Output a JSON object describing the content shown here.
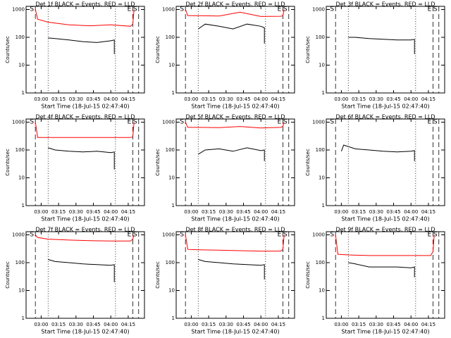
{
  "chart_data": [
    {
      "type": "line",
      "title": "Det 1f BLACK = Events, RED = LLD",
      "x_label": "Start Time (18-Jul-15 02:47:40)",
      "y_label": "Counts/sec",
      "log_y": true,
      "xlim": [
        "02:47",
        "04:29"
      ],
      "xticks": [
        "03:00",
        "03:15",
        "03:30",
        "03:45",
        "04:00",
        "04:15"
      ],
      "ylim": [
        1,
        1300
      ],
      "yticks": [
        1,
        10,
        100,
        1000
      ],
      "vlines": [
        {
          "x": "02:55",
          "style": "dashed",
          "label": "S"
        },
        {
          "x": "03:06",
          "style": "dotted"
        },
        {
          "x": "04:04",
          "style": "dotted"
        },
        {
          "x": "04:19",
          "style": "dashed",
          "label": "E"
        },
        {
          "x": "04:24",
          "style": "dashed",
          "label": "S"
        }
      ],
      "series": [
        {
          "name": "LLD",
          "color": "#ff0000",
          "x": [
            "02:55",
            "02:57",
            "03:06",
            "03:24",
            "03:42",
            "04:00",
            "04:17",
            "04:19",
            "04:20"
          ],
          "values": [
            1000,
            450,
            350,
            280,
            260,
            280,
            250,
            300,
            1000
          ]
        },
        {
          "name": "Events",
          "color": "#000000",
          "x": [
            "03:06",
            "03:12",
            "03:24",
            "03:36",
            "03:48",
            "04:00",
            "04:03",
            "04:03"
          ],
          "values": [
            95,
            90,
            80,
            70,
            65,
            75,
            80,
            25
          ]
        }
      ]
    },
    {
      "type": "line",
      "title": "Det 2f BLACK = Events, RED = LLD",
      "x_label": "Start Time (18-Jul-15 02:47:40)",
      "y_label": "Counts/sec",
      "log_y": true,
      "xlim": [
        "02:47",
        "04:29"
      ],
      "xticks": [
        "03:00",
        "03:15",
        "03:30",
        "03:45",
        "04:00",
        "04:15"
      ],
      "ylim": [
        1,
        1300
      ],
      "yticks": [
        1,
        10,
        100,
        1000
      ],
      "vlines": [
        {
          "x": "02:55",
          "style": "dashed",
          "label": "S"
        },
        {
          "x": "03:06",
          "style": "dotted"
        },
        {
          "x": "04:04",
          "style": "dotted"
        },
        {
          "x": "04:19",
          "style": "dashed",
          "label": "E"
        },
        {
          "x": "04:24",
          "style": "dashed",
          "label": "S"
        }
      ],
      "series": [
        {
          "name": "LLD",
          "color": "#ff0000",
          "x": [
            "02:55",
            "02:57",
            "03:06",
            "03:24",
            "03:42",
            "04:00",
            "04:17",
            "04:19",
            "04:20"
          ],
          "values": [
            1000,
            600,
            600,
            580,
            800,
            560,
            570,
            600,
            1000
          ]
        },
        {
          "name": "Events",
          "color": "#000000",
          "x": [
            "03:06",
            "03:12",
            "03:24",
            "03:36",
            "03:48",
            "04:00",
            "04:03",
            "04:03"
          ],
          "values": [
            200,
            300,
            250,
            200,
            300,
            250,
            220,
            60
          ]
        }
      ]
    },
    {
      "type": "line",
      "title": "Det 3f BLACK = Events, RED = LLD",
      "x_label": "Start Time (18-Jul-15 02:47:40)",
      "y_label": "Counts/sec",
      "log_y": true,
      "xlim": [
        "02:47",
        "04:29"
      ],
      "xticks": [
        "03:00",
        "03:15",
        "03:30",
        "03:45",
        "04:00",
        "04:15"
      ],
      "ylim": [
        1,
        1300
      ],
      "yticks": [
        1,
        10,
        100,
        1000
      ],
      "vlines": [
        {
          "x": "02:55",
          "style": "dashed",
          "label": "S"
        },
        {
          "x": "03:06",
          "style": "dotted"
        },
        {
          "x": "04:04",
          "style": "dotted"
        },
        {
          "x": "04:19",
          "style": "dashed",
          "label": "E"
        },
        {
          "x": "04:24",
          "style": "dashed",
          "label": "S"
        }
      ],
      "series": [
        {
          "name": "Events",
          "color": "#000000",
          "x": [
            "03:06",
            "03:12",
            "03:24",
            "03:36",
            "03:48",
            "04:00",
            "04:03",
            "04:03"
          ],
          "values": [
            100,
            100,
            90,
            85,
            80,
            80,
            85,
            25
          ]
        }
      ]
    },
    {
      "type": "line",
      "title": "Det 4f BLACK = Events, RED = LLD",
      "x_label": "Start Time (18-Jul-15 02:47:40)",
      "y_label": "Counts/sec",
      "log_y": true,
      "xlim": [
        "02:47",
        "04:29"
      ],
      "xticks": [
        "03:00",
        "03:15",
        "03:30",
        "03:45",
        "04:00",
        "04:15"
      ],
      "ylim": [
        1,
        1300
      ],
      "yticks": [
        1,
        10,
        100,
        1000
      ],
      "vlines": [
        {
          "x": "02:55",
          "style": "dashed",
          "label": "S"
        },
        {
          "x": "03:06",
          "style": "dotted"
        },
        {
          "x": "04:04",
          "style": "dotted"
        },
        {
          "x": "04:19",
          "style": "dashed",
          "label": "E"
        },
        {
          "x": "04:24",
          "style": "dashed",
          "label": "S"
        }
      ],
      "series": [
        {
          "name": "LLD",
          "color": "#ff0000",
          "x": [
            "02:55",
            "02:57",
            "03:06",
            "03:24",
            "03:42",
            "04:00",
            "04:17",
            "04:19",
            "04:20"
          ],
          "values": [
            1000,
            280,
            280,
            280,
            280,
            280,
            280,
            300,
            1000
          ]
        },
        {
          "name": "Events",
          "color": "#000000",
          "x": [
            "03:06",
            "03:12",
            "03:24",
            "03:36",
            "03:48",
            "04:00",
            "04:03",
            "04:03"
          ],
          "values": [
            120,
            100,
            90,
            85,
            90,
            80,
            85,
            20
          ]
        }
      ]
    },
    {
      "type": "line",
      "title": "Det 5f BLACK = Events, RED = LLD",
      "x_label": "Start Time (18-Jul-15 02:47:40)",
      "y_label": "Counts/sec",
      "log_y": true,
      "xlim": [
        "02:47",
        "04:29"
      ],
      "xticks": [
        "03:00",
        "03:15",
        "03:30",
        "03:45",
        "04:00",
        "04:15"
      ],
      "ylim": [
        1,
        1300
      ],
      "yticks": [
        1,
        10,
        100,
        1000
      ],
      "vlines": [
        {
          "x": "02:55",
          "style": "dashed",
          "label": "S"
        },
        {
          "x": "03:06",
          "style": "dotted"
        },
        {
          "x": "04:04",
          "style": "dotted"
        },
        {
          "x": "04:19",
          "style": "dashed",
          "label": "E"
        },
        {
          "x": "04:24",
          "style": "dashed",
          "label": "S"
        }
      ],
      "series": [
        {
          "name": "LLD",
          "color": "#ff0000",
          "x": [
            "02:55",
            "02:57",
            "03:06",
            "03:24",
            "03:42",
            "04:00",
            "04:17",
            "04:19",
            "04:20"
          ],
          "values": [
            1000,
            650,
            650,
            640,
            700,
            620,
            650,
            700,
            1000
          ]
        },
        {
          "name": "Events",
          "color": "#000000",
          "x": [
            "03:06",
            "03:12",
            "03:24",
            "03:36",
            "03:48",
            "04:00",
            "04:03",
            "04:03"
          ],
          "values": [
            70,
            100,
            110,
            90,
            120,
            95,
            100,
            40
          ]
        }
      ]
    },
    {
      "type": "line",
      "title": "Det 6f BLACK = Events, RED = LLD",
      "x_label": "Start Time (18-Jul-15 02:47:40)",
      "y_label": "Counts/sec",
      "log_y": true,
      "xlim": [
        "02:47",
        "04:29"
      ],
      "xticks": [
        "03:00",
        "03:15",
        "03:30",
        "03:45",
        "04:00",
        "04:15"
      ],
      "ylim": [
        1,
        1300
      ],
      "yticks": [
        1,
        10,
        100,
        1000
      ],
      "vlines": [
        {
          "x": "02:55",
          "style": "dashed",
          "label": "S"
        },
        {
          "x": "03:06",
          "style": "dotted"
        },
        {
          "x": "04:04",
          "style": "dotted"
        },
        {
          "x": "04:19",
          "style": "dashed",
          "label": "E"
        },
        {
          "x": "04:24",
          "style": "dashed",
          "label": "S"
        }
      ],
      "series": [
        {
          "name": "Events",
          "color": "#000000",
          "x": [
            "03:00",
            "03:02",
            "03:12",
            "03:24",
            "03:36",
            "03:48",
            "04:00",
            "04:03",
            "04:03"
          ],
          "values": [
            90,
            150,
            110,
            100,
            90,
            85,
            90,
            95,
            40
          ]
        }
      ]
    },
    {
      "type": "line",
      "title": "Det 7f BLACK = Events, RED = LLD",
      "x_label": "Start Time (18-Jul-15 02:47:40)",
      "y_label": "Counts/sec",
      "log_y": true,
      "xlim": [
        "02:47",
        "04:29"
      ],
      "xticks": [
        "03:00",
        "03:15",
        "03:30",
        "03:45",
        "04:00",
        "04:15"
      ],
      "ylim": [
        1,
        1300
      ],
      "yticks": [
        1,
        10,
        100,
        1000
      ],
      "vlines": [
        {
          "x": "02:55",
          "style": "dashed",
          "label": "S"
        },
        {
          "x": "03:06",
          "style": "dotted"
        },
        {
          "x": "04:04",
          "style": "dotted"
        },
        {
          "x": "04:19",
          "style": "dashed",
          "label": "E"
        },
        {
          "x": "04:24",
          "style": "dashed",
          "label": "S"
        }
      ],
      "series": [
        {
          "name": "LLD",
          "color": "#ff0000",
          "x": [
            "02:55",
            "02:57",
            "03:06",
            "03:24",
            "03:42",
            "04:00",
            "04:17",
            "04:19",
            "04:20"
          ],
          "values": [
            1000,
            800,
            700,
            650,
            620,
            600,
            600,
            700,
            1000
          ]
        },
        {
          "name": "Events",
          "color": "#000000",
          "x": [
            "03:06",
            "03:12",
            "03:24",
            "03:36",
            "03:48",
            "04:00",
            "04:03",
            "04:03"
          ],
          "values": [
            130,
            110,
            100,
            90,
            85,
            80,
            85,
            20
          ]
        }
      ]
    },
    {
      "type": "line",
      "title": "Det 8f BLACK = Events, RED = LLD",
      "x_label": "Start Time (18-Jul-15 02:47:40)",
      "y_label": "Counts/sec",
      "log_y": true,
      "xlim": [
        "02:47",
        "04:29"
      ],
      "xticks": [
        "03:00",
        "03:15",
        "03:30",
        "03:45",
        "04:00",
        "04:15"
      ],
      "ylim": [
        1,
        1300
      ],
      "yticks": [
        1,
        10,
        100,
        1000
      ],
      "vlines": [
        {
          "x": "02:55",
          "style": "dashed",
          "label": "S"
        },
        {
          "x": "03:06",
          "style": "dotted"
        },
        {
          "x": "04:04",
          "style": "dotted"
        },
        {
          "x": "04:19",
          "style": "dashed",
          "label": "E"
        },
        {
          "x": "04:24",
          "style": "dashed",
          "label": "S"
        }
      ],
      "series": [
        {
          "name": "LLD",
          "color": "#ff0000",
          "x": [
            "02:55",
            "02:57",
            "03:06",
            "03:24",
            "03:42",
            "04:00",
            "04:17",
            "04:19",
            "04:20"
          ],
          "values": [
            1000,
            300,
            290,
            280,
            270,
            260,
            260,
            300,
            1000
          ]
        },
        {
          "name": "Events",
          "color": "#000000",
          "x": [
            "03:06",
            "03:12",
            "03:24",
            "03:36",
            "03:48",
            "04:00",
            "04:03",
            "04:03"
          ],
          "values": [
            130,
            110,
            100,
            90,
            85,
            80,
            85,
            25
          ]
        }
      ]
    },
    {
      "type": "line",
      "title": "Det 9f BLACK = Events, RED = LLD",
      "x_label": "Start Time (18-Jul-15 02:47:40)",
      "y_label": "Counts/sec",
      "log_y": true,
      "xlim": [
        "02:47",
        "04:29"
      ],
      "xticks": [
        "03:00",
        "03:15",
        "03:30",
        "03:45",
        "04:00",
        "04:15"
      ],
      "ylim": [
        1,
        1300
      ],
      "yticks": [
        1,
        10,
        100,
        1000
      ],
      "vlines": [
        {
          "x": "02:55",
          "style": "dashed",
          "label": "S"
        },
        {
          "x": "03:06",
          "style": "dotted"
        },
        {
          "x": "04:04",
          "style": "dotted"
        },
        {
          "x": "04:19",
          "style": "dashed",
          "label": "E"
        },
        {
          "x": "04:24",
          "style": "dashed",
          "label": "S"
        }
      ],
      "series": [
        {
          "name": "LLD",
          "color": "#ff0000",
          "x": [
            "02:55",
            "02:57",
            "03:06",
            "03:24",
            "03:42",
            "04:00",
            "04:17",
            "04:19",
            "04:20"
          ],
          "values": [
            1000,
            200,
            190,
            180,
            180,
            180,
            180,
            250,
            1000
          ]
        },
        {
          "name": "Events",
          "color": "#000000",
          "x": [
            "03:06",
            "03:12",
            "03:24",
            "03:36",
            "03:48",
            "04:00",
            "04:03",
            "04:03"
          ],
          "values": [
            100,
            90,
            70,
            70,
            70,
            65,
            70,
            30
          ]
        }
      ]
    }
  ]
}
